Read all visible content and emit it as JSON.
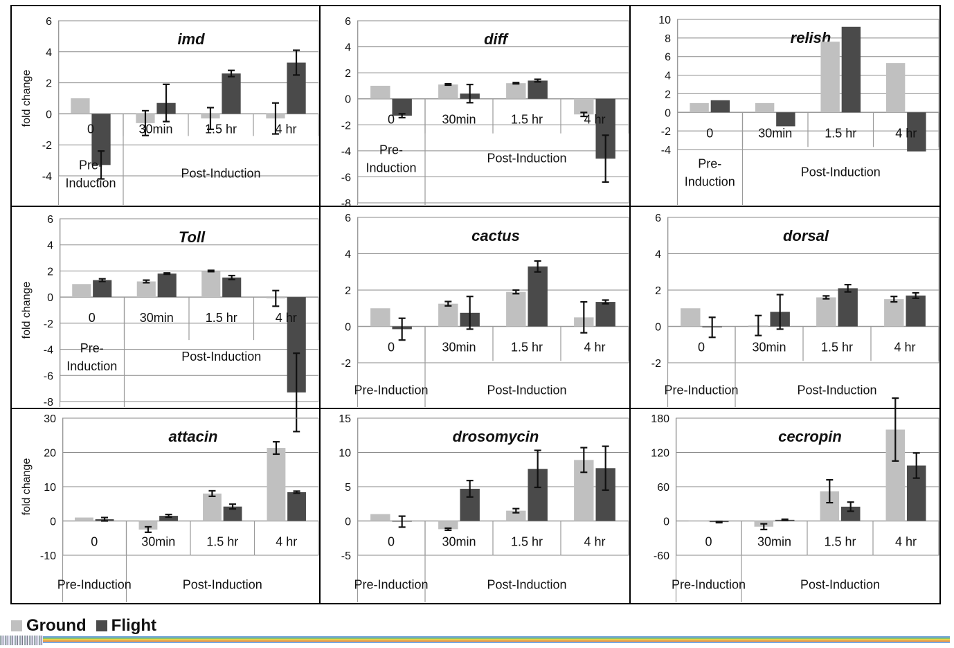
{
  "legend": {
    "ground_label": "Ground",
    "flight_label": "Flight",
    "ground_color": "#c0c0c0",
    "flight_color": "#4a4a4a"
  },
  "chart_data": [
    {
      "type": "bar",
      "title": "imd",
      "ylabel": "fold change",
      "ylim": [
        -4,
        6
      ],
      "yticks": [
        "6",
        "4",
        "2",
        "0",
        "-2",
        "-4"
      ],
      "yticks_values": [
        6,
        4,
        2,
        0,
        -2,
        -4
      ],
      "categories": [
        "0",
        "30min",
        "1.5 hr",
        "4 hr"
      ],
      "groups": [
        {
          "label": "Pre-\nInduction",
          "span": 1
        },
        {
          "label": "Post-Induction",
          "span": 3
        }
      ],
      "series": [
        {
          "name": "Ground",
          "values": [
            1.0,
            -0.6,
            -0.3,
            -0.3
          ],
          "err": [
            0,
            0.8,
            0.7,
            1.0
          ]
        },
        {
          "name": "Flight",
          "values": [
            -3.3,
            0.7,
            2.6,
            3.3
          ],
          "err": [
            0.9,
            1.2,
            0.2,
            0.8
          ]
        }
      ]
    },
    {
      "type": "bar",
      "title": "diff",
      "ylabel": "",
      "ylim": [
        -8,
        6
      ],
      "yticks": [
        "6",
        "4",
        "2",
        "0",
        "-2",
        "-4",
        "-6",
        "-8"
      ],
      "yticks_values": [
        6,
        4,
        2,
        0,
        -2,
        -4,
        -6,
        -8
      ],
      "categories": [
        "0",
        "30min",
        "1.5 hr",
        "4 hr"
      ],
      "groups": [
        {
          "label": "Pre-\nInduction",
          "span": 1
        },
        {
          "label": "Post-Induction",
          "span": 3
        }
      ],
      "series": [
        {
          "name": "Ground",
          "values": [
            1.0,
            1.1,
            1.2,
            -1.2
          ],
          "err": [
            0,
            0.05,
            0.05,
            0.15
          ]
        },
        {
          "name": "Flight",
          "values": [
            -1.3,
            0.4,
            1.4,
            -4.6
          ],
          "err": [
            0.15,
            0.7,
            0.1,
            1.8
          ]
        }
      ]
    },
    {
      "type": "bar",
      "title": "relish",
      "ylabel": "",
      "ylim": [
        -4,
        10
      ],
      "yticks": [
        "10",
        "8",
        "6",
        "4",
        "2",
        "0",
        "-2",
        "-4"
      ],
      "yticks_values": [
        10,
        8,
        6,
        4,
        2,
        0,
        -2,
        -4
      ],
      "categories": [
        "0",
        "30min",
        "1.5 hr",
        "4 hr"
      ],
      "groups": [
        {
          "label": "Pre-\nInduction",
          "span": 1
        },
        {
          "label": "Post-Induction",
          "span": 3
        }
      ],
      "series": [
        {
          "name": "Ground",
          "values": [
            1.0,
            1.0,
            7.6,
            5.3
          ],
          "err": [
            0,
            0,
            0,
            0
          ]
        },
        {
          "name": "Flight",
          "values": [
            1.3,
            -1.5,
            9.2,
            -4.2
          ],
          "err": [
            0,
            0,
            0,
            0
          ]
        }
      ]
    },
    {
      "type": "bar",
      "title": "Toll",
      "ylabel": "fold change",
      "ylim": [
        -8,
        6
      ],
      "yticks": [
        "6",
        "4",
        "2",
        "0",
        "-2",
        "-4",
        "-6",
        "-8"
      ],
      "yticks_values": [
        6,
        4,
        2,
        0,
        -2,
        -4,
        -6,
        -8
      ],
      "categories": [
        "0",
        "30min",
        "1.5 hr",
        "4 hr"
      ],
      "groups": [
        {
          "label": "Pre-\nInduction",
          "span": 1
        },
        {
          "label": "Post-Induction",
          "span": 3
        }
      ],
      "series": [
        {
          "name": "Ground",
          "values": [
            1.0,
            1.2,
            2.0,
            -0.1
          ],
          "err": [
            0,
            0.1,
            0.05,
            0.6
          ]
        },
        {
          "name": "Flight",
          "values": [
            1.3,
            1.8,
            1.5,
            -7.3
          ],
          "err": [
            0.1,
            0.05,
            0.15,
            3.0
          ]
        }
      ]
    },
    {
      "type": "bar",
      "title": "cactus",
      "ylabel": "",
      "ylim": [
        -2,
        6
      ],
      "yticks": [
        "6",
        "4",
        "2",
        "0",
        "-2"
      ],
      "yticks_values": [
        6,
        4,
        2,
        0,
        -2
      ],
      "categories": [
        "0",
        "30min",
        "1.5 hr",
        "4 hr"
      ],
      "groups": [
        {
          "label": "Pre-Induction",
          "span": 1
        },
        {
          "label": "Post-Induction",
          "span": 3
        }
      ],
      "series": [
        {
          "name": "Ground",
          "values": [
            1.0,
            1.25,
            1.9,
            0.5
          ],
          "err": [
            0,
            0.12,
            0.1,
            0.85
          ]
        },
        {
          "name": "Flight",
          "values": [
            -0.15,
            0.75,
            3.3,
            1.35
          ],
          "err": [
            0.6,
            0.9,
            0.3,
            0.1
          ]
        }
      ]
    },
    {
      "type": "bar",
      "title": "dorsal",
      "ylabel": "",
      "ylim": [
        -2,
        6
      ],
      "yticks": [
        "6",
        "4",
        "2",
        "0",
        "-2"
      ],
      "yticks_values": [
        6,
        4,
        2,
        0,
        -2
      ],
      "categories": [
        "0",
        "30min",
        "1.5 hr",
        "4 hr"
      ],
      "groups": [
        {
          "label": "Pre-Induction",
          "span": 1
        },
        {
          "label": "Post-Induction",
          "span": 3
        }
      ],
      "series": [
        {
          "name": "Ground",
          "values": [
            1.0,
            0.05,
            1.6,
            1.5
          ],
          "err": [
            0,
            0.55,
            0.08,
            0.15
          ]
        },
        {
          "name": "Flight",
          "values": [
            -0.05,
            0.8,
            2.1,
            1.7
          ],
          "err": [
            0.55,
            0.95,
            0.2,
            0.15
          ]
        }
      ]
    },
    {
      "type": "bar",
      "title": "attacin",
      "ylabel": "fold change",
      "ylim": [
        -10,
        30
      ],
      "yticks": [
        "30",
        "20",
        "10",
        "0",
        "-10"
      ],
      "yticks_values": [
        30,
        20,
        10,
        0,
        -10
      ],
      "categories": [
        "0",
        "30min",
        "1.5 hr",
        "4 hr"
      ],
      "groups": [
        {
          "label": "Pre-Induction",
          "span": 1
        },
        {
          "label": "Post-Induction",
          "span": 3
        }
      ],
      "series": [
        {
          "name": "Ground",
          "values": [
            1.0,
            -2.5,
            8.0,
            21.3
          ],
          "err": [
            0,
            0.8,
            0.8,
            1.8
          ]
        },
        {
          "name": "Flight",
          "values": [
            0.5,
            1.5,
            4.2,
            8.4
          ],
          "err": [
            0.5,
            0.4,
            0.7,
            0.3
          ]
        }
      ]
    },
    {
      "type": "bar",
      "title": "drosomycin",
      "ylabel": "",
      "ylim": [
        -5,
        15
      ],
      "yticks": [
        "15",
        "10",
        "5",
        "0",
        "-5"
      ],
      "yticks_values": [
        15,
        10,
        5,
        0,
        -5
      ],
      "categories": [
        "0",
        "30min",
        "1.5 hr",
        "4 hr"
      ],
      "groups": [
        {
          "label": "Pre-Induction",
          "span": 1
        },
        {
          "label": "Post-Induction",
          "span": 3
        }
      ],
      "series": [
        {
          "name": "Ground",
          "values": [
            1.0,
            -1.2,
            1.5,
            8.9
          ],
          "err": [
            0,
            0.15,
            0.3,
            1.8
          ]
        },
        {
          "name": "Flight",
          "values": [
            -0.1,
            4.7,
            7.6,
            7.7
          ],
          "err": [
            0.8,
            1.2,
            2.7,
            3.2
          ]
        }
      ]
    },
    {
      "type": "bar",
      "title": "cecropin",
      "ylabel": "",
      "ylim": [
        -60,
        180
      ],
      "yticks": [
        "180",
        "120",
        "60",
        "0",
        "-60"
      ],
      "yticks_values": [
        180,
        120,
        60,
        0,
        -60
      ],
      "categories": [
        "0",
        "30min",
        "1.5 hr",
        "4 hr"
      ],
      "groups": [
        {
          "label": "Pre-Induction",
          "span": 1
        },
        {
          "label": "Post-Induction",
          "span": 3
        }
      ],
      "series": [
        {
          "name": "Ground",
          "values": [
            1.0,
            -10,
            52,
            160
          ],
          "err": [
            0,
            5,
            20,
            55
          ]
        },
        {
          "name": "Flight",
          "values": [
            -2,
            2,
            25,
            97
          ],
          "err": [
            1,
            1,
            8,
            22
          ]
        }
      ]
    }
  ]
}
